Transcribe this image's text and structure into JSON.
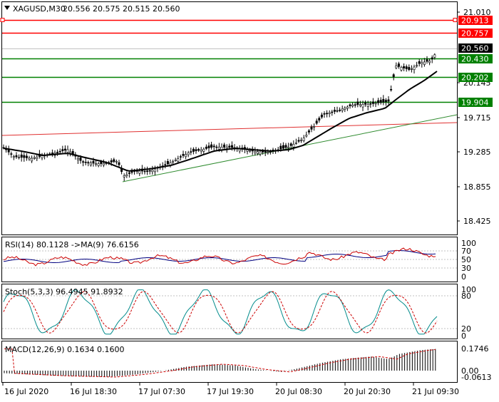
{
  "symbol_header": {
    "symbol": "XAGUSD,M30",
    "ohlc": "20.556 20.575 20.515 20.560"
  },
  "price_axis": {
    "ticks": [
      "21.010",
      "20.145",
      "19.715",
      "19.285",
      "18.855",
      "18.425"
    ],
    "labels": [
      {
        "value": "20.913",
        "kind": "red"
      },
      {
        "value": "20.757",
        "kind": "red"
      },
      {
        "value": "20.560",
        "kind": "current"
      },
      {
        "value": "20.430",
        "kind": "green"
      },
      {
        "value": "20.202",
        "kind": "green"
      },
      {
        "value": "19.904",
        "kind": "green"
      }
    ]
  },
  "time_axis": {
    "ticks": [
      "16 Jul 2020",
      "16 Jul 18:30",
      "17 Jul 07:30",
      "17 Jul 19:30",
      "20 Jul 08:30",
      "20 Jul 20:30",
      "21 Jul 09:30"
    ]
  },
  "rsi_panel": {
    "title": "RSI(14) 80.1128 ->MA(9) 76.6156",
    "ticks": [
      "100",
      "70",
      "50",
      "30",
      "0"
    ]
  },
  "stoch_panel": {
    "title": "Stoch(5,3,3) 96.4945 91.8932",
    "ticks": [
      "100",
      "80",
      "20",
      "0"
    ]
  },
  "macd_panel": {
    "title": "MACD(12,26,9) 0.1634 0.1600",
    "ticks": [
      "0.1746",
      "0.00",
      "-0.0613"
    ]
  },
  "colors": {
    "red_level": "#ff0000",
    "green_level": "#008000",
    "trend_red": "#e03030",
    "trend_green": "#2e8b2e",
    "ma_line": "#000000",
    "rsi_line": "#cc0000",
    "rsi_ma": "#000080",
    "stoch_main": "#008b8b",
    "stoch_signal": "#cc0000",
    "macd_hist": "#000000",
    "macd_signal": "#cc0000"
  },
  "icons": {
    "collapse": "triangle-down-icon"
  }
}
